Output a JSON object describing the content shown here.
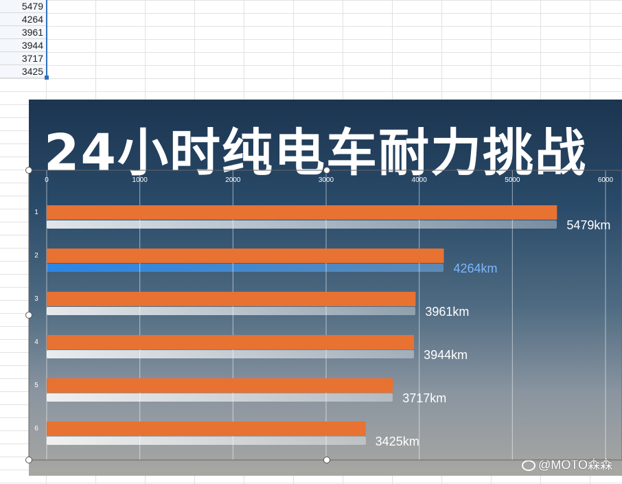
{
  "spreadsheet": {
    "column_values": [
      "5479",
      "4264",
      "3961",
      "3944",
      "3717",
      "3425"
    ]
  },
  "photo": {
    "title": "24小时纯电车耐力挑战",
    "bands": [
      {
        "value_label": "5479km",
        "value": 5479,
        "style": "white"
      },
      {
        "value_label": "4264km",
        "value": 4264,
        "style": "blue"
      },
      {
        "value_label": "3961km",
        "value": 3961,
        "style": "white"
      },
      {
        "value_label": "3944km",
        "value": 3944,
        "style": "white"
      },
      {
        "value_label": "3717km",
        "value": 3717,
        "style": "white"
      },
      {
        "value_label": "3425km",
        "value": 3425,
        "style": "white"
      }
    ],
    "watermark": "@MOTO森森"
  },
  "chart_data": {
    "type": "bar",
    "orientation": "horizontal",
    "categories": [
      "1",
      "2",
      "3",
      "4",
      "5",
      "6"
    ],
    "values": [
      5479,
      4264,
      3961,
      3944,
      3717,
      3425
    ],
    "xlim": [
      0,
      6000
    ],
    "xticks": [
      0,
      1000,
      2000,
      3000,
      4000,
      5000,
      6000
    ],
    "bar_color": "#e87232",
    "grid": true,
    "tick_color": "#ffffff"
  }
}
